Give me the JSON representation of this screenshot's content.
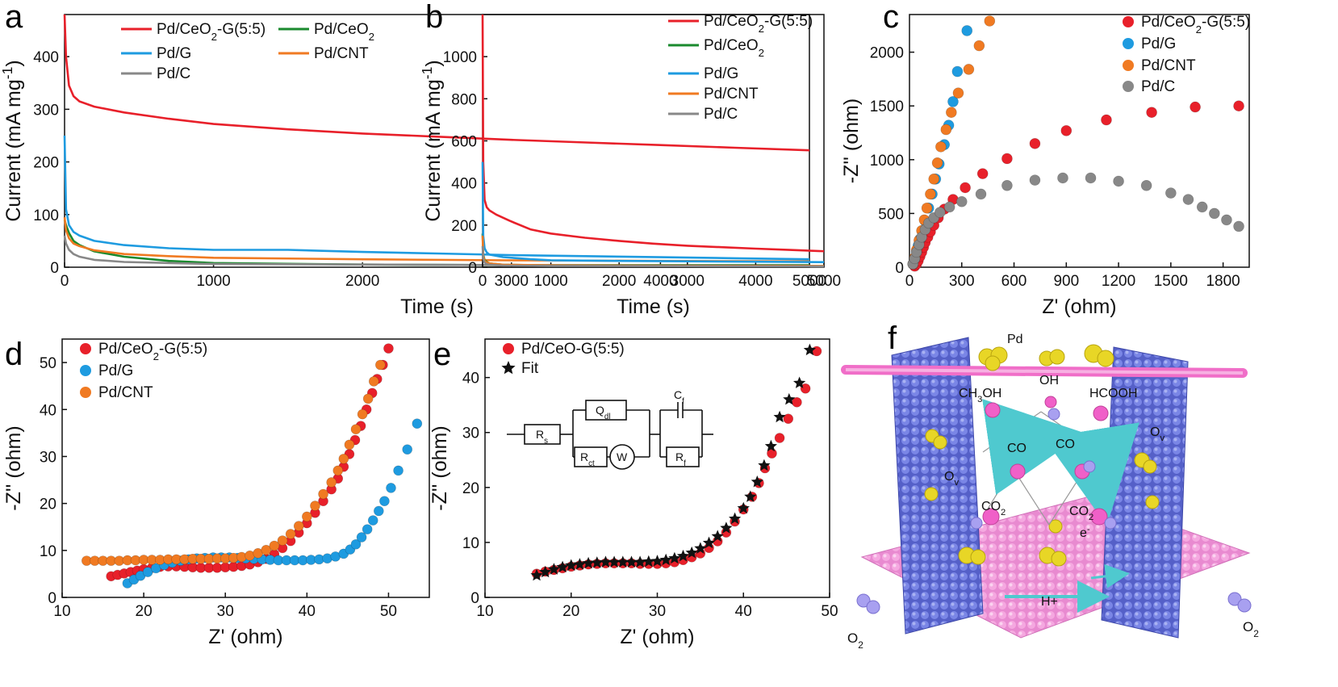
{
  "colors": {
    "red": "#e8202a",
    "blue": "#1e9be0",
    "orange": "#f07a22",
    "green": "#1a8a2e",
    "gray": "#888888",
    "black": "#111111",
    "pink": "#f06ec8",
    "purple": "#6a6ad8"
  },
  "panels": {
    "a": {
      "letter": "a"
    },
    "b": {
      "letter": "b"
    },
    "c": {
      "letter": "c"
    },
    "d": {
      "letter": "d"
    },
    "e": {
      "letter": "e"
    },
    "f": {
      "letter": "f"
    }
  },
  "circuit": {
    "rs": "Rs",
    "qdl": "Qdl",
    "rct": "Rct",
    "w": "W",
    "cf": "Cf",
    "rf": "Rf"
  },
  "schematic": {
    "pd": "Pd",
    "ch3oh": "CH3OH",
    "oh": "OH",
    "hcooh": "HCOOH",
    "co_left": "CO",
    "co_right": "CO",
    "ov_left": "Ov",
    "ov_right": "Ov",
    "co2_left": "CO2",
    "co2_right": "CO2",
    "electron": "e-",
    "proton": "H+",
    "o2_left": "O2",
    "o2_right": "O2",
    "icon": "catalyst-illustration-icon"
  },
  "chart_data": [
    {
      "panel": "a",
      "type": "line",
      "xlabel": "Time (s)",
      "ylabel": "Current (mA mg-1)",
      "xlim": [
        0,
        5000
      ],
      "ylim": [
        0,
        480
      ],
      "xticks": [
        0,
        1000,
        2000,
        3000,
        4000,
        5000
      ],
      "yticks": [
        0,
        100,
        200,
        300,
        400
      ],
      "legend_position": "top",
      "series": [
        {
          "name": "Pd/CeO2-G(5:5)",
          "color": "#e8202a",
          "x": [
            0,
            10,
            30,
            60,
            100,
            200,
            400,
            700,
            1000,
            1500,
            2000,
            2500,
            3000,
            3500,
            4000,
            4500,
            5000
          ],
          "y": [
            480,
            400,
            345,
            325,
            315,
            305,
            294,
            282,
            272,
            262,
            254,
            248,
            242,
            237,
            232,
            227,
            222
          ]
        },
        {
          "name": "Pd/CeO2",
          "color": "#1a8a2e",
          "x": [
            0,
            10,
            30,
            60,
            100,
            200,
            400,
            700,
            1000,
            2000,
            3000,
            4000,
            5000
          ],
          "y": [
            90,
            80,
            65,
            50,
            42,
            30,
            20,
            12,
            8,
            5,
            4,
            4,
            4
          ]
        },
        {
          "name": "Pd/G",
          "color": "#1e9be0",
          "x": [
            0,
            10,
            30,
            60,
            100,
            200,
            400,
            700,
            1000,
            1500,
            2000,
            2500,
            3000,
            3500,
            4000,
            4500,
            5000
          ],
          "y": [
            250,
            110,
            80,
            67,
            60,
            50,
            42,
            36,
            33,
            33,
            29,
            26,
            23,
            21,
            19,
            17,
            15
          ]
        },
        {
          "name": "Pd/CNT",
          "color": "#f07a22",
          "x": [
            0,
            10,
            30,
            60,
            100,
            200,
            400,
            700,
            1000,
            2000,
            3000,
            4000,
            5000
          ],
          "y": [
            95,
            70,
            55,
            45,
            40,
            32,
            25,
            21,
            18,
            15,
            13,
            12,
            11
          ]
        },
        {
          "name": "Pd/C",
          "color": "#888888",
          "x": [
            0,
            10,
            30,
            60,
            100,
            200,
            400,
            700,
            1000,
            2000,
            3000,
            4000,
            5000
          ],
          "y": [
            60,
            45,
            33,
            25,
            20,
            14,
            10,
            8,
            6,
            5,
            4,
            3,
            3
          ]
        }
      ]
    },
    {
      "panel": "b",
      "type": "line",
      "xlabel": "Time (s)",
      "ylabel": "Current (mA mg-1)",
      "xlim": [
        0,
        5000
      ],
      "ylim": [
        0,
        1200
      ],
      "xticks": [
        0,
        1000,
        2000,
        3000,
        4000,
        5000
      ],
      "yticks": [
        0,
        200,
        400,
        600,
        800,
        1000
      ],
      "legend_position": "top-right",
      "series": [
        {
          "name": "Pd/CeO2-G(5:5)",
          "color": "#e8202a",
          "x": [
            0,
            10,
            30,
            60,
            100,
            200,
            400,
            700,
            1000,
            1500,
            2000,
            2500,
            3000,
            3500,
            4000,
            4500,
            5000
          ],
          "y": [
            1200,
            500,
            320,
            285,
            270,
            250,
            220,
            180,
            160,
            140,
            125,
            112,
            102,
            95,
            88,
            82,
            76
          ]
        },
        {
          "name": "Pd/CeO2",
          "color": "#1a8a2e",
          "x": [
            0,
            10,
            30,
            60,
            100,
            300,
            1000,
            3000,
            5000
          ],
          "y": [
            160,
            60,
            35,
            25,
            18,
            12,
            8,
            6,
            5
          ]
        },
        {
          "name": "Pd/G",
          "color": "#1e9be0",
          "x": [
            0,
            10,
            30,
            60,
            100,
            300,
            700,
            1000,
            2000,
            3000,
            4000,
            5000
          ],
          "y": [
            500,
            150,
            90,
            70,
            60,
            48,
            38,
            33,
            30,
            28,
            26,
            24
          ]
        },
        {
          "name": "Pd/CNT",
          "color": "#f07a22",
          "x": [
            0,
            10,
            30,
            60,
            100,
            300,
            1000,
            3000,
            5000
          ],
          "y": [
            150,
            55,
            30,
            22,
            18,
            12,
            9,
            7,
            6
          ]
        },
        {
          "name": "Pd/C",
          "color": "#888888",
          "x": [
            0,
            10,
            30,
            60,
            100,
            300,
            1000,
            3000,
            5000
          ],
          "y": [
            100,
            40,
            22,
            15,
            12,
            8,
            6,
            5,
            4
          ]
        }
      ]
    },
    {
      "panel": "c",
      "type": "scatter",
      "xlabel": "Z' (ohm)",
      "ylabel": "-Z'' (ohm)",
      "xlim": [
        0,
        1950
      ],
      "ylim": [
        0,
        2350
      ],
      "xticks": [
        0,
        300,
        600,
        900,
        1200,
        1500,
        1800
      ],
      "yticks": [
        0,
        500,
        1000,
        1500,
        2000
      ],
      "legend_position": "top-right",
      "series": [
        {
          "name": "Pd/CeO2-G(5:5)",
          "color": "#e8202a",
          "x": [
            30,
            40,
            50,
            60,
            70,
            80,
            90,
            105,
            120,
            140,
            165,
            200,
            250,
            320,
            420,
            560,
            720,
            900,
            1130,
            1390,
            1640,
            1890
          ],
          "y": [
            10,
            30,
            60,
            100,
            140,
            185,
            230,
            280,
            330,
            390,
            460,
            540,
            630,
            740,
            870,
            1010,
            1150,
            1270,
            1370,
            1440,
            1490,
            1500
          ]
        },
        {
          "name": "Pd/G",
          "color": "#1e9be0",
          "x": [
            20,
            30,
            40,
            50,
            60,
            75,
            90,
            110,
            130,
            150,
            170,
            200,
            225,
            250,
            275,
            330
          ],
          "y": [
            30,
            80,
            140,
            200,
            260,
            340,
            430,
            550,
            680,
            820,
            960,
            1140,
            1320,
            1540,
            1820,
            2200
          ]
        },
        {
          "name": "Pd/CNT",
          "color": "#f07a22",
          "x": [
            20,
            30,
            40,
            55,
            70,
            85,
            100,
            120,
            140,
            160,
            180,
            210,
            240,
            280,
            340,
            400,
            460
          ],
          "y": [
            30,
            90,
            160,
            250,
            340,
            440,
            550,
            680,
            820,
            970,
            1120,
            1280,
            1440,
            1620,
            1840,
            2060,
            2290
          ]
        },
        {
          "name": "Pd/C",
          "color": "#888888",
          "x": [
            20,
            30,
            40,
            55,
            70,
            90,
            110,
            140,
            175,
            230,
            300,
            410,
            560,
            720,
            880,
            1040,
            1200,
            1360,
            1500,
            1600,
            1680,
            1750,
            1820,
            1890
          ],
          "y": [
            30,
            80,
            140,
            210,
            280,
            350,
            410,
            460,
            510,
            560,
            610,
            680,
            760,
            810,
            830,
            830,
            800,
            760,
            690,
            630,
            560,
            500,
            440,
            380
          ]
        }
      ]
    },
    {
      "panel": "d",
      "type": "scatter",
      "xlabel": "Z' (ohm)",
      "ylabel": "-Z'' (ohm)",
      "xlim": [
        10,
        55
      ],
      "ylim": [
        0,
        55
      ],
      "xticks": [
        10,
        20,
        30,
        40,
        50
      ],
      "yticks": [
        0,
        10,
        20,
        30,
        40,
        50
      ],
      "legend_position": "top-left",
      "series": [
        {
          "name": "Pd/CeO2-G(5:5)",
          "color": "#e8202a",
          "x": [
            16.0,
            16.8,
            17.6,
            18.4,
            19.2,
            20.0,
            21.0,
            22.0,
            23.0,
            24.0,
            25.0,
            26.0,
            27.0,
            28.0,
            29.0,
            30.0,
            31.0,
            32.0,
            33.0,
            34.0,
            35.0,
            36.0,
            37.0,
            38.0,
            39.0,
            40.0,
            41.0,
            42.0,
            43.0,
            43.8,
            44.5,
            45.2,
            45.9,
            46.6,
            47.3,
            48.0,
            48.6,
            49.3,
            50.0
          ],
          "y": [
            4.5,
            4.8,
            5.1,
            5.4,
            5.7,
            6.0,
            6.3,
            6.5,
            6.6,
            6.6,
            6.5,
            6.4,
            6.3,
            6.3,
            6.3,
            6.4,
            6.5,
            6.7,
            7.0,
            7.5,
            8.2,
            9.2,
            10.5,
            12.0,
            13.8,
            15.8,
            18.0,
            20.5,
            23.0,
            25.3,
            27.8,
            30.5,
            33.5,
            36.5,
            40.0,
            43.5,
            46.5,
            49.5,
            53.0
          ]
        },
        {
          "name": "Pd/G",
          "color": "#1e9be0",
          "x": [
            18.0,
            18.8,
            19.6,
            20.5,
            21.5,
            22.5,
            23.5,
            24.5,
            25.5,
            26.5,
            27.5,
            28.5,
            29.5,
            30.5,
            31.5,
            32.5,
            33.5,
            34.5,
            35.5,
            36.5,
            37.5,
            38.5,
            39.5,
            40.5,
            41.5,
            42.5,
            43.5,
            44.5,
            45.3,
            46.0,
            46.7,
            47.4,
            48.1,
            48.8,
            49.5,
            50.3,
            51.2,
            52.3,
            53.5
          ],
          "y": [
            3.0,
            3.8,
            4.6,
            5.4,
            6.2,
            6.9,
            7.4,
            7.8,
            8.1,
            8.3,
            8.4,
            8.5,
            8.5,
            8.5,
            8.4,
            8.3,
            8.2,
            8.1,
            8.0,
            7.9,
            7.9,
            7.9,
            7.9,
            8.0,
            8.1,
            8.3,
            8.7,
            9.3,
            10.2,
            11.3,
            12.8,
            14.5,
            16.4,
            18.4,
            20.5,
            23.3,
            27.0,
            31.5,
            37.0
          ]
        },
        {
          "name": "Pd/CNT",
          "color": "#f07a22",
          "x": [
            13.0,
            14.0,
            15.0,
            16.0,
            17.0,
            18.0,
            19.0,
            20.0,
            21.0,
            22.0,
            23.0,
            24.0,
            25.0,
            26.0,
            27.0,
            28.0,
            29.0,
            30.0,
            31.0,
            32.0,
            33.0,
            34.0,
            35.0,
            36.0,
            37.0,
            38.0,
            39.0,
            40.0,
            41.0,
            42.0,
            43.0,
            43.8,
            44.5,
            45.2,
            46.0,
            46.8,
            47.5,
            48.2,
            49.0
          ],
          "y": [
            7.8,
            7.8,
            7.8,
            7.8,
            7.8,
            7.9,
            7.9,
            8.0,
            8.0,
            8.0,
            8.1,
            8.1,
            8.1,
            8.2,
            8.2,
            8.2,
            8.3,
            8.3,
            8.4,
            8.6,
            8.9,
            9.4,
            10.1,
            11.0,
            12.1,
            13.5,
            15.2,
            17.2,
            19.5,
            22.0,
            24.5,
            27.0,
            29.5,
            32.5,
            35.8,
            39.0,
            42.3,
            46.0,
            49.5
          ]
        }
      ]
    },
    {
      "panel": "e",
      "type": "scatter",
      "xlabel": "Z' (ohm)",
      "ylabel": "-Z'' (ohm)",
      "xlim": [
        10,
        50
      ],
      "ylim": [
        0,
        47
      ],
      "xticks": [
        10,
        20,
        30,
        40,
        50
      ],
      "yticks": [
        0,
        10,
        20,
        30,
        40
      ],
      "legend_position": "top-left",
      "series": [
        {
          "name": "Pd/CeO-G(5:5)",
          "color": "#e8202a",
          "marker": "circle",
          "x": [
            16,
            17,
            18,
            19,
            20,
            21,
            22,
            23,
            24,
            25,
            26,
            27,
            28,
            29,
            30,
            31,
            32,
            33,
            34,
            35,
            36,
            37,
            38,
            39,
            40,
            41,
            41.8,
            42.5,
            43.3,
            44.2,
            45.2,
            46.2,
            47.2,
            48.5
          ],
          "y": [
            4.3,
            4.7,
            5.0,
            5.3,
            5.6,
            5.8,
            6.0,
            6.1,
            6.2,
            6.2,
            6.2,
            6.2,
            6.1,
            6.1,
            6.1,
            6.2,
            6.4,
            6.8,
            7.3,
            8.0,
            9.0,
            10.2,
            11.8,
            13.8,
            16.0,
            18.3,
            20.8,
            23.5,
            26.2,
            29.0,
            32.5,
            35.5,
            38.0,
            44.8
          ]
        },
        {
          "name": "Fit",
          "color": "#111111",
          "marker": "star",
          "x": [
            16,
            17,
            18,
            19,
            20,
            21,
            22,
            23,
            24,
            25,
            26,
            27,
            28,
            29,
            30,
            31,
            32,
            33,
            34,
            35,
            36,
            37,
            38,
            39,
            40,
            40.8,
            41.6,
            42.4,
            43.2,
            44.2,
            45.3,
            46.5,
            47.7
          ],
          "y": [
            4.0,
            4.6,
            5.1,
            5.5,
            5.8,
            6.0,
            6.2,
            6.3,
            6.4,
            6.4,
            6.4,
            6.4,
            6.4,
            6.5,
            6.6,
            6.8,
            7.1,
            7.5,
            8.1,
            8.9,
            9.9,
            11.1,
            12.6,
            14.3,
            16.2,
            18.3,
            21.0,
            24.0,
            27.5,
            32.8,
            36.0,
            39.0,
            45.0
          ]
        }
      ]
    }
  ]
}
